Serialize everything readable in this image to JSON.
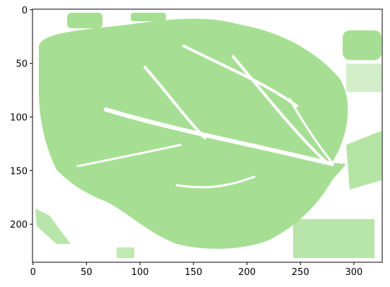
{
  "chart_data": {
    "type": "image",
    "color": "#a6df93",
    "xlim": [
      -0.5,
      326.5
    ],
    "ylim": [
      235.5,
      -0.5
    ],
    "xticks": [
      0,
      50,
      100,
      150,
      200,
      250,
      300
    ],
    "yticks": [
      0,
      50,
      100,
      150,
      200
    ]
  }
}
